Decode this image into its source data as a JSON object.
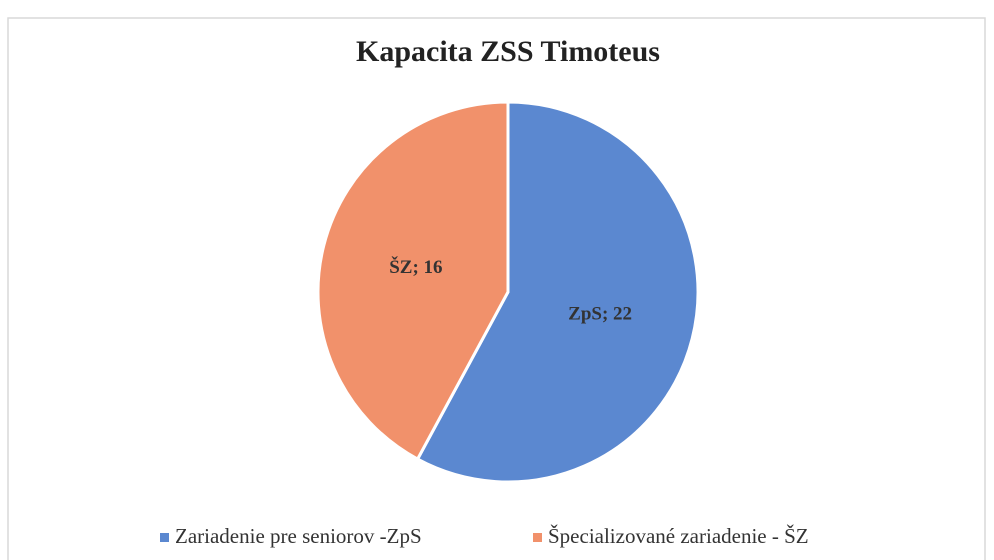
{
  "chart_data": {
    "type": "pie",
    "title": "Kapacita ZSS Timoteus",
    "categories": [
      "Zariadenie pre seniorov -ZpS",
      "Špecializované zariadenie - ŠZ"
    ],
    "values": [
      22,
      16
    ],
    "value_labels": [
      "ZpS; 22",
      "ŠZ; 16"
    ],
    "colors": [
      "#5b88d0",
      "#f1916b"
    ],
    "legend": "bottom"
  }
}
